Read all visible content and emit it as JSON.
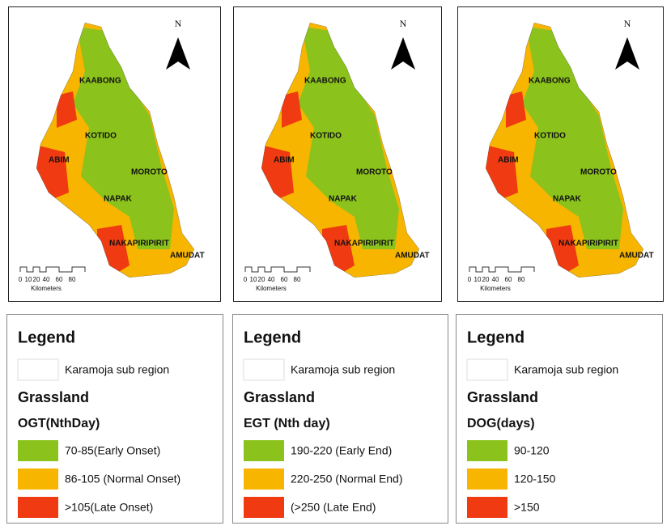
{
  "panels": [
    {
      "map": {
        "north": "N",
        "districts": [
          "KAABONG",
          "KOTIDO",
          "ABIM",
          "MOROTO",
          "NAPAK",
          "NAKAPIRIPIRIT",
          "AMUDAT"
        ],
        "scale": {
          "ticks": [
            "0",
            "10",
            "20",
            "40",
            "60",
            "80"
          ],
          "unit": "Kilometers"
        }
      },
      "legend": {
        "title": "Legend",
        "boundary": "Karamoja sub region",
        "class": "Grassland",
        "variable": "OGT(NthDay)",
        "items": [
          {
            "label": "70-85(Early Onset)",
            "color": "#8cc21c"
          },
          {
            "label": "86-105 (Normal Onset)",
            "color": "#f7b500"
          },
          {
            "label": ">105(Late Onset)",
            "color": "#f03a12"
          }
        ]
      }
    },
    {
      "map": {
        "north": "N",
        "districts": [
          "KAABONG",
          "KOTIDO",
          "ABIM",
          "MOROTO",
          "NAPAK",
          "NAKAPIRIPIRIT",
          "AMUDAT"
        ],
        "scale": {
          "ticks": [
            "0",
            "10",
            "20",
            "40",
            "60",
            "80"
          ],
          "unit": "Kilometers"
        }
      },
      "legend": {
        "title": "Legend",
        "boundary": "Karamoja sub region",
        "class": "Grassland",
        "variable": "EGT (Nth day)",
        "items": [
          {
            "label": "190-220 (Early End)",
            "color": "#8cc21c"
          },
          {
            "label": "220-250 (Normal End)",
            "color": "#f7b500"
          },
          {
            "label": "(>250 (Late End)",
            "color": "#f03a12"
          }
        ]
      }
    },
    {
      "map": {
        "north": "N",
        "districts": [
          "KAABONG",
          "KOTIDO",
          "ABIM",
          "MOROTO",
          "NAPAK",
          "NAKAPIRIPIRIT",
          "AMUDAT"
        ],
        "scale": {
          "ticks": [
            "0",
            "10",
            "20",
            "40",
            "60",
            "80"
          ],
          "unit": "Kilometers"
        }
      },
      "legend": {
        "title": "Legend",
        "boundary": "Karamoja sub region",
        "class": "Grassland",
        "variable": "DOG(days)",
        "items": [
          {
            "label": "90-120",
            "color": "#8cc21c"
          },
          {
            "label": "120-150",
            "color": "#f7b500"
          },
          {
            "label": ">150",
            "color": "#f03a12"
          }
        ]
      }
    }
  ]
}
